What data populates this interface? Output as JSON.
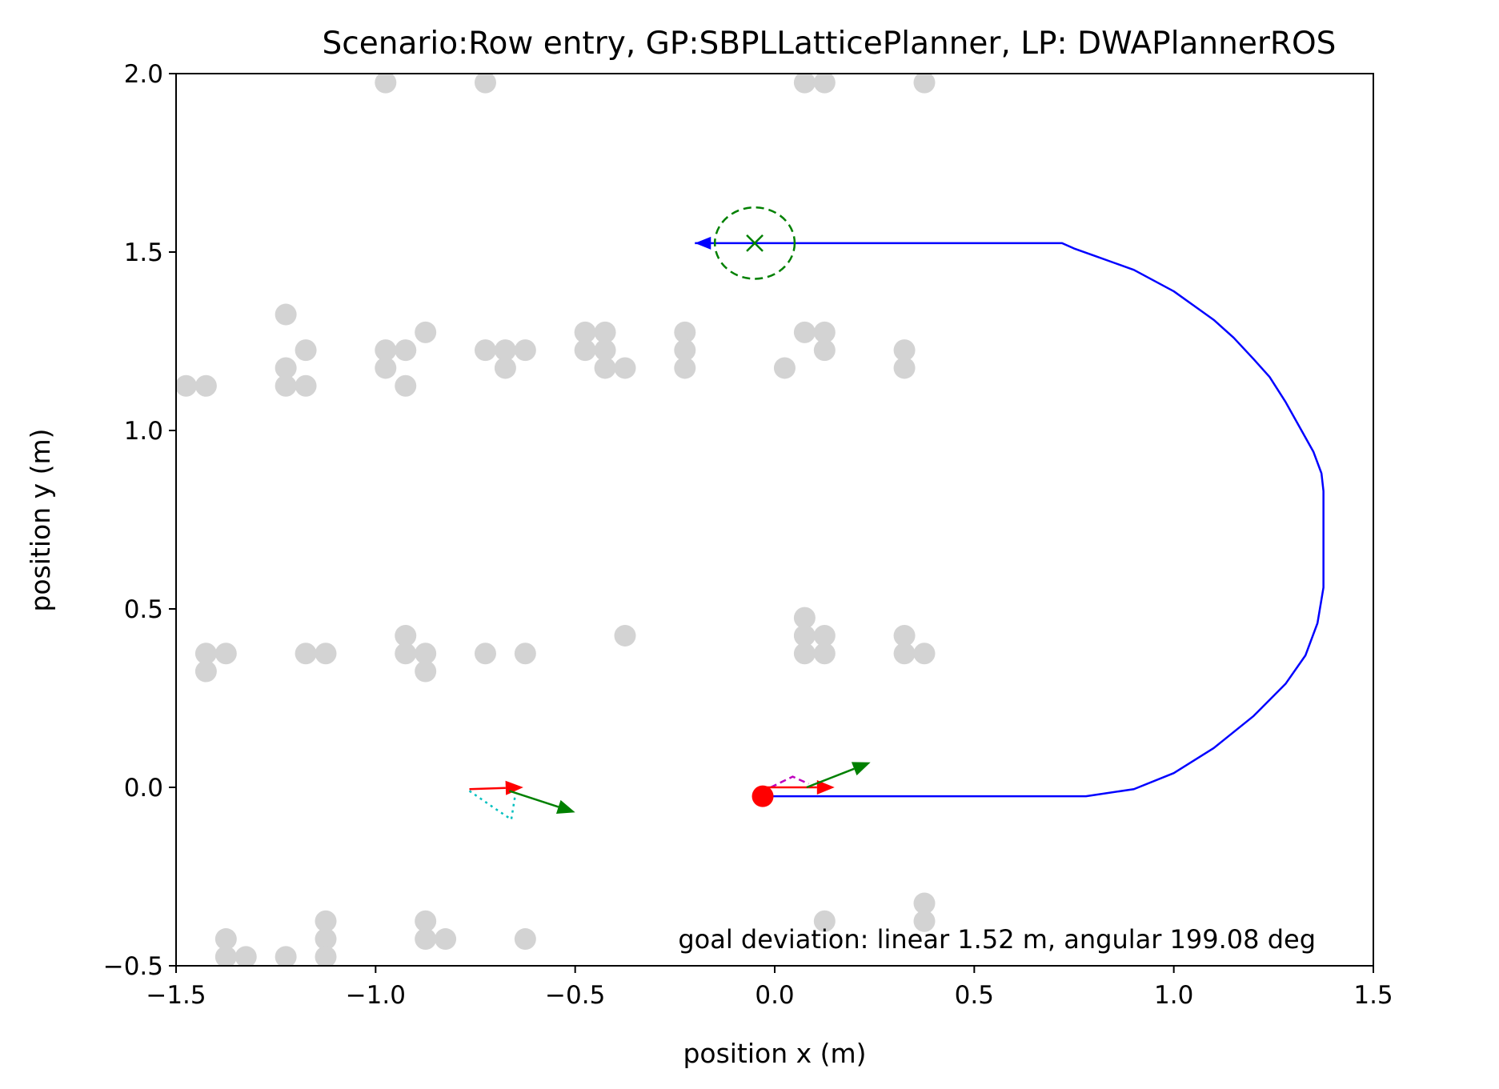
{
  "chart_data": {
    "type": "scatter",
    "title": "Scenario:Row entry, GP:SBPLLatticePlanner, LP: DWAPlannerROS",
    "xlabel": "position x (m)",
    "ylabel": "position y (m)",
    "xlim": [
      -1.5,
      1.5
    ],
    "ylim": [
      -0.5,
      2.0
    ],
    "xticks": [
      -1.5,
      -1.0,
      -0.5,
      0.0,
      0.5,
      1.0,
      1.5
    ],
    "yticks": [
      -0.5,
      0.0,
      0.5,
      1.0,
      1.5,
      2.0
    ],
    "xtick_labels": [
      "−1.5",
      "−1.0",
      "−0.5",
      "0.0",
      "0.5",
      "1.0",
      "1.5"
    ],
    "ytick_labels": [
      "−0.5",
      "0.0",
      "0.5",
      "1.0",
      "1.5",
      "2.0"
    ],
    "grid": false,
    "annotation": "goal deviation: linear 1.52 m, angular 199.08 deg",
    "colors": {
      "obstacles": "#d3d3d3",
      "path": "#0000ff",
      "goal": "#008000",
      "robot": "#ff0000",
      "heading": "#ff0000",
      "velocity": "#008000",
      "local_plan": "#bf00bf",
      "footprint": "#00bfbf"
    },
    "obstacles": [
      [
        -0.975,
        1.975
      ],
      [
        -0.725,
        1.975
      ],
      [
        0.075,
        1.975
      ],
      [
        0.125,
        1.975
      ],
      [
        0.375,
        1.975
      ],
      [
        -1.225,
        1.325
      ],
      [
        -0.875,
        1.275
      ],
      [
        -0.475,
        1.275
      ],
      [
        -0.425,
        1.275
      ],
      [
        -0.225,
        1.275
      ],
      [
        0.075,
        1.275
      ],
      [
        0.125,
        1.275
      ],
      [
        -1.175,
        1.225
      ],
      [
        -0.975,
        1.225
      ],
      [
        -0.925,
        1.225
      ],
      [
        -0.725,
        1.225
      ],
      [
        -0.675,
        1.225
      ],
      [
        -0.625,
        1.225
      ],
      [
        -0.475,
        1.225
      ],
      [
        -0.425,
        1.225
      ],
      [
        -0.225,
        1.225
      ],
      [
        0.125,
        1.225
      ],
      [
        0.325,
        1.225
      ],
      [
        -1.225,
        1.175
      ],
      [
        -0.975,
        1.175
      ],
      [
        -0.675,
        1.175
      ],
      [
        -0.425,
        1.175
      ],
      [
        -0.375,
        1.175
      ],
      [
        -0.225,
        1.175
      ],
      [
        0.025,
        1.175
      ],
      [
        0.325,
        1.175
      ],
      [
        -1.475,
        1.125
      ],
      [
        -1.425,
        1.125
      ],
      [
        -1.225,
        1.125
      ],
      [
        -1.175,
        1.125
      ],
      [
        -0.925,
        1.125
      ],
      [
        0.075,
        0.475
      ],
      [
        -0.925,
        0.425
      ],
      [
        -0.375,
        0.425
      ],
      [
        0.075,
        0.425
      ],
      [
        0.125,
        0.425
      ],
      [
        0.325,
        0.425
      ],
      [
        -1.425,
        0.375
      ],
      [
        -1.375,
        0.375
      ],
      [
        -1.175,
        0.375
      ],
      [
        -1.125,
        0.375
      ],
      [
        -0.925,
        0.375
      ],
      [
        -0.875,
        0.375
      ],
      [
        -0.725,
        0.375
      ],
      [
        -0.625,
        0.375
      ],
      [
        0.075,
        0.375
      ],
      [
        0.125,
        0.375
      ],
      [
        0.325,
        0.375
      ],
      [
        0.375,
        0.375
      ],
      [
        -1.425,
        0.325
      ],
      [
        -0.875,
        0.325
      ],
      [
        0.375,
        -0.325
      ],
      [
        -1.125,
        -0.375
      ],
      [
        -0.875,
        -0.375
      ],
      [
        0.125,
        -0.375
      ],
      [
        0.375,
        -0.375
      ],
      [
        -1.375,
        -0.425
      ],
      [
        -1.125,
        -0.425
      ],
      [
        -0.875,
        -0.425
      ],
      [
        -0.825,
        -0.425
      ],
      [
        -0.625,
        -0.425
      ],
      [
        -1.375,
        -0.475
      ],
      [
        -1.325,
        -0.475
      ],
      [
        -1.225,
        -0.475
      ],
      [
        -1.125,
        -0.475
      ]
    ],
    "path": [
      [
        -0.03,
        -0.025
      ],
      [
        0.78,
        -0.025
      ],
      [
        0.9,
        -0.005
      ],
      [
        1.0,
        0.04
      ],
      [
        1.1,
        0.11
      ],
      [
        1.2,
        0.2
      ],
      [
        1.28,
        0.29
      ],
      [
        1.33,
        0.37
      ],
      [
        1.36,
        0.46
      ],
      [
        1.375,
        0.56
      ],
      [
        1.375,
        0.83
      ],
      [
        1.37,
        0.88
      ],
      [
        1.35,
        0.94
      ],
      [
        1.32,
        1.0
      ],
      [
        1.28,
        1.08
      ],
      [
        1.24,
        1.15
      ],
      [
        1.2,
        1.2
      ],
      [
        1.15,
        1.26
      ],
      [
        1.1,
        1.31
      ],
      [
        1.05,
        1.35
      ],
      [
        1.0,
        1.39
      ],
      [
        0.95,
        1.42
      ],
      [
        0.9,
        1.45
      ],
      [
        0.85,
        1.47
      ],
      [
        0.8,
        1.49
      ],
      [
        0.75,
        1.51
      ],
      [
        0.72,
        1.525
      ],
      [
        -0.2,
        1.525
      ]
    ],
    "goal": {
      "x": -0.05,
      "y": 1.525,
      "tolerance_radius": 0.1
    },
    "robot": {
      "x": -0.03,
      "y": -0.025
    },
    "arrows": [
      {
        "role": "heading",
        "color": "#ff0000",
        "from": [
          -0.02,
          0.0
        ],
        "to": [
          0.15,
          0.0
        ]
      },
      {
        "role": "velocity",
        "color": "#008000",
        "from": [
          0.08,
          0.0
        ],
        "to": [
          0.24,
          0.07
        ]
      },
      {
        "role": "heading",
        "color": "#ff0000",
        "from": [
          -0.765,
          -0.005
        ],
        "to": [
          -0.63,
          0.0
        ]
      },
      {
        "role": "velocity",
        "color": "#008000",
        "from": [
          -0.665,
          -0.01
        ],
        "to": [
          -0.5,
          -0.07
        ]
      }
    ],
    "local_plan": [
      [
        -0.01,
        0.0
      ],
      [
        0.045,
        0.03
      ],
      [
        0.085,
        0.01
      ]
    ],
    "footprint": [
      [
        -0.765,
        -0.01
      ],
      [
        -0.7,
        -0.06
      ],
      [
        -0.66,
        -0.09
      ],
      [
        -0.65,
        -0.02
      ]
    ]
  }
}
